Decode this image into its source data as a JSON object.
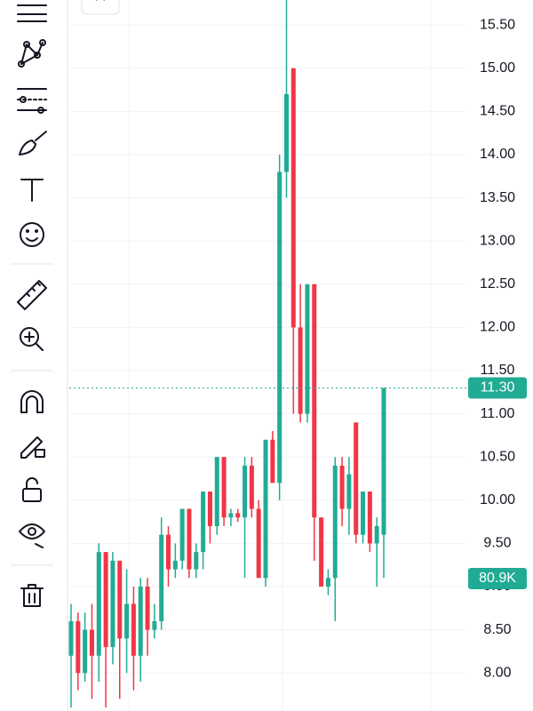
{
  "chart_data": {
    "type": "candlestick",
    "up_color": "#22ab94",
    "down_color": "#f23645",
    "open": [
      8.2,
      8.6,
      8.0,
      8.5,
      8.2,
      9.4,
      8.3,
      9.3,
      8.4,
      8.8,
      8.2,
      9.0,
      8.5,
      8.6,
      9.6,
      9.2,
      9.3,
      9.9,
      9.2,
      9.4,
      10.1,
      9.7,
      10.5,
      9.8,
      9.85,
      9.8,
      10.4,
      9.9,
      9.1,
      10.7,
      10.2,
      13.8,
      15.0,
      12.0,
      11.0,
      12.5,
      9.8,
      9.0,
      9.1,
      10.4,
      9.9,
      10.9,
      9.6,
      10.1,
      9.5,
      9.6
    ],
    "high": [
      8.8,
      8.7,
      8.7,
      8.8,
      9.5,
      9.4,
      9.4,
      9.3,
      9.2,
      9.0,
      9.1,
      9.1,
      8.8,
      9.8,
      9.7,
      9.5,
      9.9,
      9.9,
      9.5,
      10.1,
      10.1,
      10.5,
      10.5,
      9.9,
      9.9,
      10.5,
      10.5,
      10.0,
      10.7,
      10.8,
      14.0,
      15.8,
      15.0,
      12.5,
      12.5,
      12.5,
      9.8,
      9.2,
      10.5,
      10.5,
      10.5,
      10.9,
      10.1,
      10.1,
      9.8,
      11.3
    ],
    "low": [
      7.6,
      7.8,
      7.9,
      7.7,
      7.9,
      7.6,
      8.1,
      7.7,
      8.0,
      7.8,
      7.9,
      8.2,
      8.4,
      8.5,
      9.0,
      9.1,
      9.2,
      9.1,
      9.1,
      9.2,
      9.5,
      9.6,
      9.7,
      9.7,
      9.75,
      9.1,
      9.8,
      9.1,
      9.0,
      10.2,
      10.0,
      13.5,
      11.0,
      10.9,
      10.9,
      9.3,
      9.0,
      8.9,
      8.6,
      9.7,
      9.6,
      9.5,
      9.5,
      9.4,
      9.0,
      9.1
    ],
    "close": [
      8.6,
      8.0,
      8.5,
      8.2,
      9.4,
      8.3,
      9.3,
      8.4,
      8.8,
      8.2,
      9.0,
      8.5,
      8.6,
      9.6,
      9.2,
      9.3,
      9.9,
      9.2,
      9.4,
      10.1,
      9.7,
      10.5,
      9.8,
      9.85,
      9.8,
      10.4,
      9.9,
      9.1,
      10.7,
      10.2,
      13.8,
      14.7,
      12.0,
      11.0,
      12.5,
      9.8,
      9.0,
      9.1,
      10.4,
      9.9,
      10.3,
      9.6,
      10.1,
      9.5,
      9.7,
      11.3
    ],
    "ylim": [
      7.56,
      15.79
    ],
    "yticks": [
      {
        "value": 8,
        "label": "8.00"
      },
      {
        "value": 8.5,
        "label": "8.50"
      },
      {
        "value": 9,
        "label": "9.00"
      },
      {
        "value": 9.5,
        "label": "9.50"
      },
      {
        "value": 10,
        "label": "10.00"
      },
      {
        "value": 10.5,
        "label": "10.50"
      },
      {
        "value": 11,
        "label": "11.00"
      },
      {
        "value": 11.5,
        "label": "11.50"
      },
      {
        "value": 12,
        "label": "12.00"
      },
      {
        "value": 12.5,
        "label": "12.50"
      },
      {
        "value": 13,
        "label": "13.00"
      },
      {
        "value": 13.5,
        "label": "13.50"
      },
      {
        "value": 14,
        "label": "14.00"
      },
      {
        "value": 14.5,
        "label": "14.50"
      },
      {
        "value": 15,
        "label": "15.00"
      },
      {
        "value": 15.5,
        "label": "15.50"
      }
    ],
    "grid": true,
    "last_price": {
      "value": 11.3,
      "label": "11.30"
    },
    "last_volume": {
      "value": 80900,
      "label": "80.9K"
    }
  }
}
